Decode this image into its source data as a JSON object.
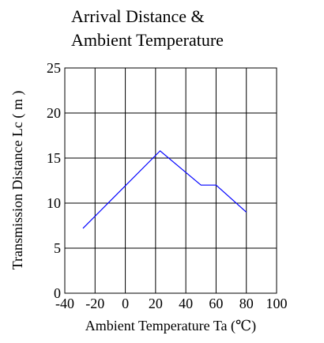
{
  "chart_data": {
    "type": "line",
    "title_lines": [
      "Arrival Distance &",
      "Ambient Temperature"
    ],
    "xlabel": "Ambient Temperature Ta (℃)",
    "ylabel": "Transmission Distance Lc ( m )",
    "xlim": [
      -40,
      100
    ],
    "ylim": [
      0,
      25
    ],
    "x_ticks": [
      -40,
      -20,
      0,
      20,
      40,
      60,
      80,
      100
    ],
    "y_ticks": [
      0,
      5,
      10,
      15,
      20,
      25
    ],
    "grid": true,
    "line_color": "#0000ff",
    "series": [
      {
        "x": [
          -28,
          23,
          50,
          60,
          80
        ],
        "y": [
          7.2,
          15.8,
          12.0,
          12.0,
          9.0
        ]
      }
    ]
  }
}
